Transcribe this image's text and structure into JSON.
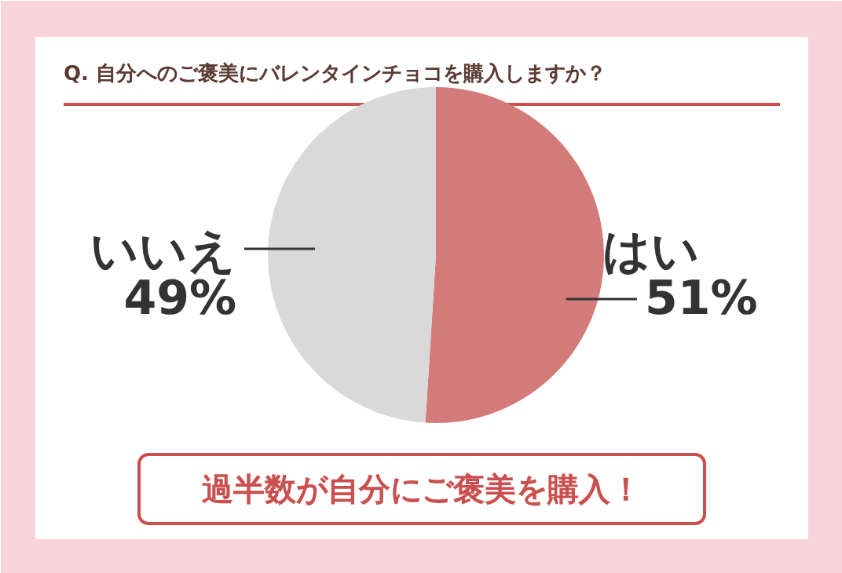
{
  "chart_data": {
    "type": "pie",
    "title": "Q. 自分へのご褒美にバレンタインチョコを購入しますか？",
    "categories": [
      "はい",
      "いいえ"
    ],
    "values": [
      51,
      49
    ],
    "colors": [
      "#d37b7b",
      "#d9d9d9"
    ],
    "value_labels": [
      "51%",
      "49%"
    ],
    "annotations": [
      "過半数が自分にご褒美を購入！"
    ]
  }
}
